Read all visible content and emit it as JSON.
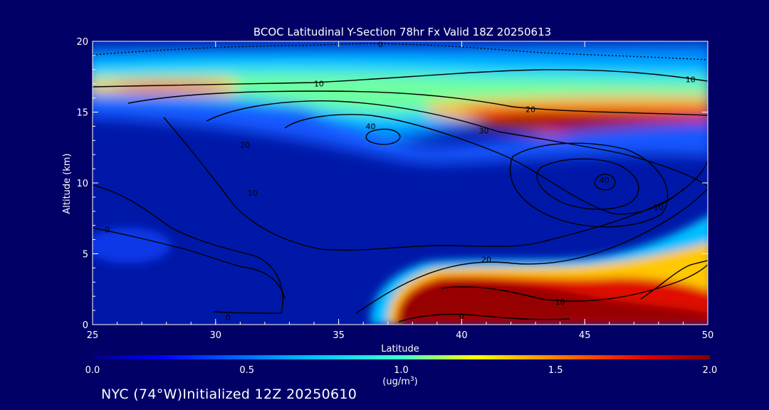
{
  "footer": "NYC (74°W)Initialized 12Z 20250610",
  "chart_data": {
    "type": "heatmap",
    "title": "BCOC Latitudinal Y-Section 78hr  Fx Valid 18Z 20250613",
    "xlabel": "Latitude",
    "ylabel": "Altitude (km)",
    "xlim": [
      25,
      50
    ],
    "ylim": [
      0,
      20
    ],
    "xticks": [
      "25",
      "30",
      "35",
      "40",
      "45",
      "50"
    ],
    "yticks": [
      "0",
      "5",
      "10",
      "15",
      "20"
    ],
    "colorbar": {
      "unit_label": "(ug/m",
      "unit_sup": "3",
      "unit_close": ")",
      "min": 0,
      "max": 2,
      "ticks": [
        "0.0",
        "0.5",
        "1.0",
        "1.5",
        "2.0"
      ]
    },
    "color_features": [
      {
        "name": "upper-layer",
        "lat_range": [
          25,
          50
        ],
        "alt_range": [
          13,
          19
        ],
        "max_value": 2.0
      },
      {
        "name": "northern-upper-maximum",
        "lat_range": [
          43,
          50
        ],
        "alt_range": [
          12.5,
          15.5
        ],
        "max_value": 2.0
      },
      {
        "name": "surface-plume",
        "lat_range": [
          37.5,
          50
        ],
        "alt_range": [
          0,
          4.5
        ],
        "max_value": 2.0
      },
      {
        "name": "southern-low-patch",
        "lat_range": [
          25,
          28
        ],
        "alt_range": [
          4,
          7
        ],
        "max_value": 0.5
      }
    ],
    "contours": [
      {
        "label": "0",
        "lat": 36.7,
        "alt": 19.8
      },
      {
        "label": "10",
        "lat": 34.2,
        "alt": 17.0
      },
      {
        "label": "10",
        "lat": 49.3,
        "alt": 17.3
      },
      {
        "label": "20",
        "lat": 42.8,
        "alt": 15.2
      },
      {
        "label": "30",
        "lat": 40.9,
        "alt": 13.7
      },
      {
        "label": "40",
        "lat": 36.3,
        "alt": 14.0
      },
      {
        "label": "20",
        "lat": 31.2,
        "alt": 12.7
      },
      {
        "label": "40",
        "lat": 45.8,
        "alt": 10.2
      },
      {
        "label": "10",
        "lat": 48.0,
        "alt": 8.3
      },
      {
        "label": "10",
        "lat": 31.5,
        "alt": 9.3
      },
      {
        "label": "0",
        "lat": 25.6,
        "alt": 6.7
      },
      {
        "label": "20",
        "lat": 41.0,
        "alt": 4.6
      },
      {
        "label": "10",
        "lat": 44.0,
        "alt": 1.6
      },
      {
        "label": "0",
        "lat": 40.0,
        "alt": 0.6
      },
      {
        "label": "0",
        "lat": 30.5,
        "alt": 0.5
      }
    ]
  }
}
